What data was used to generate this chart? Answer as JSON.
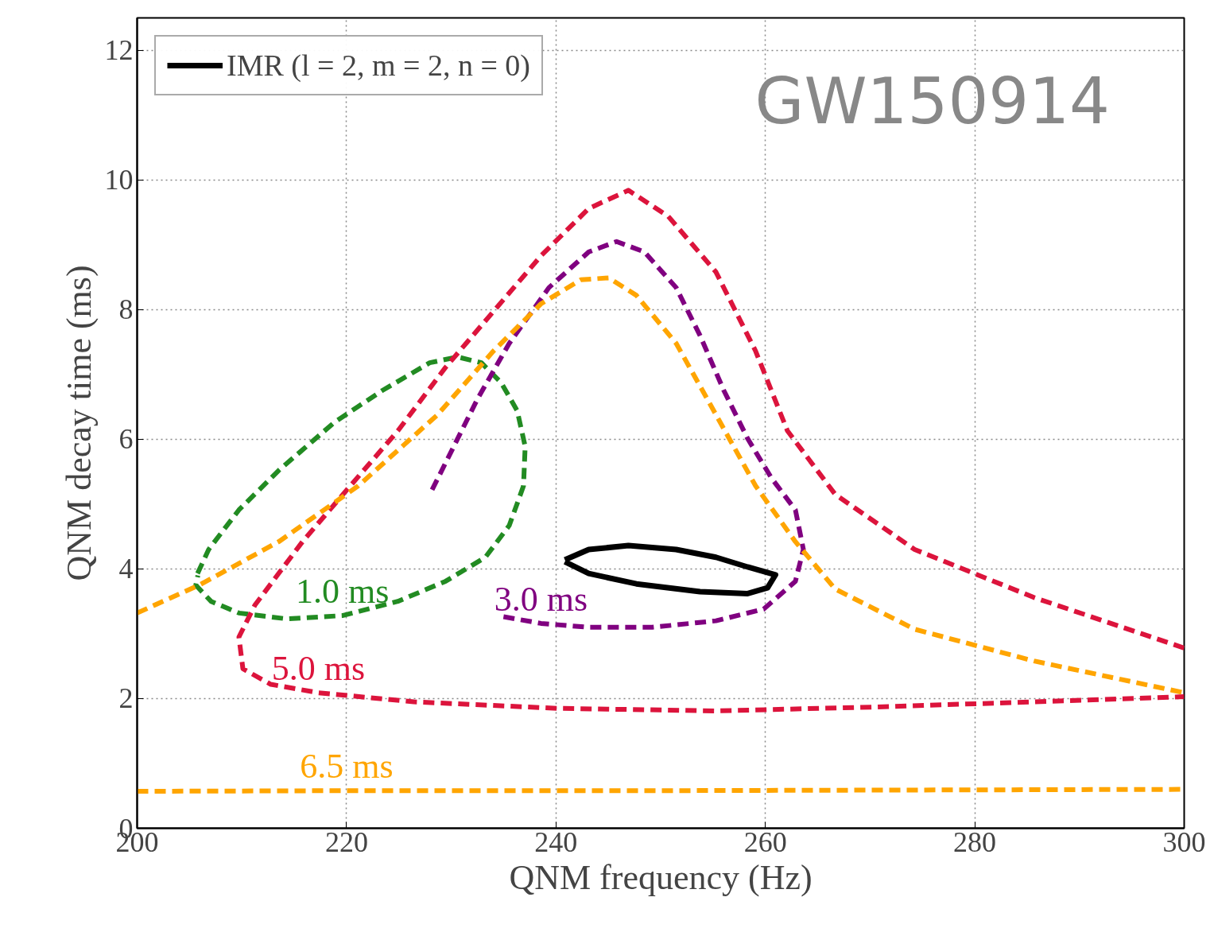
{
  "chart_data": {
    "type": "line",
    "xlabel": "QNM frequency (Hz)",
    "ylabel": "QNM decay time (ms)",
    "xlim": [
      200,
      300
    ],
    "ylim": [
      0,
      12.5
    ],
    "xticks": [
      200,
      220,
      240,
      260,
      280,
      300
    ],
    "yticks": [
      0,
      2,
      4,
      6,
      8,
      10,
      12
    ],
    "grid": true,
    "legend": "top left",
    "series": [
      {
        "color": "#228b22",
        "line_style": "dashed",
        "x": [
          205.77,
          206.83,
          209.72,
          213.52,
          218.83,
          223.39,
          227.94,
          230.6,
          232.88,
          234.78,
          236.3,
          237.06,
          236.9,
          235.54,
          233.26,
          229.46,
          224.9,
          219.6,
          214.27,
          209.72,
          207.06,
          205.6,
          205.8
        ],
        "values": [
          3.93,
          4.3,
          4.91,
          5.52,
          6.26,
          6.75,
          7.18,
          7.27,
          7.18,
          6.87,
          6.44,
          5.89,
          5.28,
          4.67,
          4.18,
          3.81,
          3.5,
          3.28,
          3.23,
          3.32,
          3.5,
          3.75,
          3.9
        ]
      },
      {
        "color": "#800080",
        "line_style": "dashed",
        "x": [
          228.17,
          232.5,
          235.54,
          239.33,
          243.13,
          245.79,
          248.44,
          251.48,
          253.76,
          256.04,
          258.31,
          260.59,
          262.87,
          263.63,
          262.87,
          259.83,
          255.28,
          249.2,
          243.13,
          238.57,
          234.4
        ],
        "values": [
          5.22,
          6.62,
          7.48,
          8.34,
          8.89,
          9.05,
          8.89,
          8.34,
          7.6,
          6.75,
          6.01,
          5.4,
          4.91,
          4.3,
          3.81,
          3.38,
          3.2,
          3.1,
          3.1,
          3.16,
          3.28
        ]
      },
      {
        "color": "#dc143c",
        "line_style": "dashed",
        "x": [
          300,
          285.65,
          274.26,
          266.67,
          262.11,
          259.07,
          255.28,
          250.72,
          246.92,
          243.13,
          238.57,
          234.02,
          229.46,
          224.9,
          220.35,
          215.79,
          211.24,
          209.72,
          210.1,
          212.76,
          217.31,
          226.42,
          240.09,
          255.28,
          270.46,
          285.65,
          300
        ],
        "values": [
          2.78,
          3.56,
          4.3,
          5.15,
          6.13,
          7.36,
          8.58,
          9.44,
          9.84,
          9.56,
          8.83,
          7.97,
          7.11,
          6.13,
          5.28,
          4.42,
          3.44,
          2.95,
          2.46,
          2.22,
          2.09,
          1.95,
          1.85,
          1.81,
          1.87,
          1.95,
          2.03
        ]
      },
      {
        "color": "#ffa500",
        "line_style": "dashed",
        "x": [
          200,
          205.92,
          213.52,
          221.11,
          228.7,
          234.02,
          238.57,
          242.37,
          245.03,
          247.68,
          251.48,
          255.28,
          259.07,
          262.87,
          266.67,
          274.26,
          285.65,
          300,
          null,
          200,
          220,
          250,
          300
        ],
        "values": [
          3.32,
          3.75,
          4.42,
          5.28,
          6.38,
          7.36,
          8.09,
          8.46,
          8.49,
          8.22,
          7.48,
          6.38,
          5.28,
          4.42,
          3.69,
          3.07,
          2.58,
          2.09,
          null,
          0.57,
          0.58,
          0.58,
          0.6
        ]
      },
      {
        "name": "IMR (l = 2, m = 2, n = 0)",
        "color": "#000000",
        "line_style": "solid",
        "x": [
          240.85,
          243.13,
          246.92,
          251.48,
          255.28,
          258.31,
          260.97,
          260.21,
          258.31,
          253.76,
          247.68,
          243.13,
          240.85
        ],
        "values": [
          4.14,
          4.3,
          4.36,
          4.3,
          4.18,
          4.03,
          3.91,
          3.71,
          3.62,
          3.65,
          3.77,
          3.93,
          4.11
        ]
      }
    ],
    "annotations": [
      {
        "text": "1.0 ms",
        "x": 219.6,
        "y": 3.28
      },
      {
        "text": "3.0 ms",
        "x": 238.57,
        "y": 3.16
      },
      {
        "text": "5.0 ms",
        "x": 217.31,
        "y": 2.09
      },
      {
        "text": "6.5 ms",
        "x": 220,
        "y": 0.58
      },
      "GW150914"
    ]
  }
}
